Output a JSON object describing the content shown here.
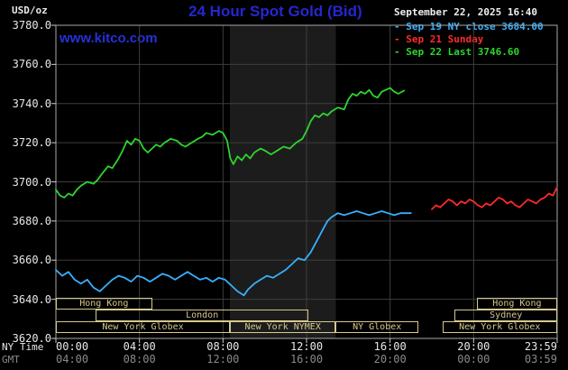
{
  "header": {
    "unit": "USD/oz",
    "title": "24 Hour Spot Gold (Bid)",
    "datetime": "September 22, 2025 16:40",
    "watermark": "www.kitco.com"
  },
  "legend": {
    "items": [
      {
        "label": "- Sep 19 NY close 3684.00",
        "color": "#38b0ff"
      },
      {
        "label": "- Sep 21 Sunday",
        "color": "#ff2a2a"
      },
      {
        "label": "- Sep 22 Last 3746.60",
        "color": "#2ed52e"
      }
    ]
  },
  "colors": {
    "title_blue": "#2626cf",
    "band": "#1c1c1c",
    "grid": "#3e3e3e",
    "border": "#a8a8a8",
    "tick": "#cccccc",
    "session_tan": "#d6c88e"
  },
  "axes": {
    "ny_row_label": "NY Time",
    "gmt_row_label": "GMT",
    "y_ticks": [
      {
        "v": 3780,
        "label": "3780.0"
      },
      {
        "v": 3760,
        "label": "3760.0"
      },
      {
        "v": 3740,
        "label": "3740.0"
      },
      {
        "v": 3720,
        "label": "3720.0"
      },
      {
        "v": 3700,
        "label": "3700.0"
      },
      {
        "v": 3680,
        "label": "3680.0"
      },
      {
        "v": 3660,
        "label": "3660.0"
      },
      {
        "v": 3640,
        "label": "3640.0"
      },
      {
        "v": 3620,
        "label": "3620.0"
      }
    ],
    "x_ticks": [
      {
        "h": 0,
        "ny": "00:00",
        "gmt": "04:00"
      },
      {
        "h": 4,
        "ny": "04:00",
        "gmt": "08:00"
      },
      {
        "h": 8,
        "ny": "08:00",
        "gmt": "12:00"
      },
      {
        "h": 12,
        "ny": "12:00",
        "gmt": "16:00"
      },
      {
        "h": 16,
        "ny": "16:00",
        "gmt": "20:00"
      },
      {
        "h": 20,
        "ny": "20:00",
        "gmt": "00:00"
      },
      {
        "h": 24,
        "ny": "23:59",
        "gmt": "03:59"
      }
    ]
  },
  "sessions": {
    "nymex_band": {
      "start": 8.33,
      "end": 13.4
    },
    "boxes": [
      {
        "label": "Hong Kong",
        "start": 0,
        "end": 4.6,
        "row": 0
      },
      {
        "label": "Hong Kong",
        "start": 20.15,
        "end": 24,
        "row": 0
      },
      {
        "label": "London",
        "start": 1.9,
        "end": 12.1,
        "row": 1
      },
      {
        "label": "Sydney",
        "start": 19.1,
        "end": 24,
        "row": 1
      },
      {
        "label": "New York Globex",
        "start": 0,
        "end": 8.33,
        "row": 2
      },
      {
        "label": "New York NYMEX",
        "start": 8.33,
        "end": 13.4,
        "row": 2
      },
      {
        "label": "NY Globex",
        "start": 13.4,
        "end": 17.35,
        "row": 2
      },
      {
        "label": "New York Globex",
        "start": 18.5,
        "end": 24,
        "row": 2
      }
    ]
  },
  "chart_data": {
    "type": "line",
    "title": "24 Hour Spot Gold (Bid)",
    "ylabel": "USD/oz",
    "xlabel": "NY Time (hours, 00:00-23:59)",
    "ylim": [
      3620,
      3780
    ],
    "xlim": [
      0,
      24
    ],
    "grid": true,
    "legend_position": "top-right",
    "series": [
      {
        "id": "sep19",
        "name": "Sep 19 NY close 3684.00",
        "color": "#38b0ff",
        "close": 3684.0,
        "points": [
          [
            0,
            3655
          ],
          [
            0.3,
            3652
          ],
          [
            0.6,
            3654
          ],
          [
            0.9,
            3650
          ],
          [
            1.2,
            3648
          ],
          [
            1.5,
            3650
          ],
          [
            1.8,
            3646
          ],
          [
            2.1,
            3644
          ],
          [
            2.4,
            3647
          ],
          [
            2.7,
            3650
          ],
          [
            3.0,
            3652
          ],
          [
            3.3,
            3651
          ],
          [
            3.6,
            3649
          ],
          [
            3.9,
            3652
          ],
          [
            4.2,
            3651
          ],
          [
            4.5,
            3649
          ],
          [
            4.8,
            3651
          ],
          [
            5.1,
            3653
          ],
          [
            5.4,
            3652
          ],
          [
            5.7,
            3650
          ],
          [
            6.0,
            3652
          ],
          [
            6.3,
            3654
          ],
          [
            6.6,
            3652
          ],
          [
            6.9,
            3650
          ],
          [
            7.2,
            3651
          ],
          [
            7.5,
            3649
          ],
          [
            7.8,
            3651
          ],
          [
            8.1,
            3650
          ],
          [
            8.4,
            3647
          ],
          [
            8.7,
            3644
          ],
          [
            9.0,
            3642
          ],
          [
            9.2,
            3645
          ],
          [
            9.5,
            3648
          ],
          [
            9.8,
            3650
          ],
          [
            10.1,
            3652
          ],
          [
            10.4,
            3651
          ],
          [
            10.7,
            3653
          ],
          [
            11.0,
            3655
          ],
          [
            11.3,
            3658
          ],
          [
            11.6,
            3661
          ],
          [
            11.9,
            3660
          ],
          [
            12.2,
            3664
          ],
          [
            12.5,
            3670
          ],
          [
            12.8,
            3676
          ],
          [
            13.0,
            3680
          ],
          [
            13.2,
            3682
          ],
          [
            13.5,
            3684
          ],
          [
            13.8,
            3683
          ],
          [
            14.1,
            3684
          ],
          [
            14.4,
            3685
          ],
          [
            14.7,
            3684
          ],
          [
            15.0,
            3683
          ],
          [
            15.3,
            3684
          ],
          [
            15.6,
            3685
          ],
          [
            15.9,
            3684
          ],
          [
            16.2,
            3683
          ],
          [
            16.5,
            3684
          ],
          [
            17.0,
            3684
          ]
        ]
      },
      {
        "id": "sep21",
        "name": "Sep 21 Sunday",
        "color": "#ff2a2a",
        "points": [
          [
            18.0,
            3686
          ],
          [
            18.2,
            3688
          ],
          [
            18.4,
            3687
          ],
          [
            18.6,
            3689
          ],
          [
            18.8,
            3691
          ],
          [
            19.0,
            3690
          ],
          [
            19.2,
            3688
          ],
          [
            19.4,
            3690
          ],
          [
            19.6,
            3689
          ],
          [
            19.8,
            3691
          ],
          [
            20.0,
            3690
          ],
          [
            20.2,
            3688
          ],
          [
            20.4,
            3687
          ],
          [
            20.6,
            3689
          ],
          [
            20.8,
            3688
          ],
          [
            21.0,
            3690
          ],
          [
            21.2,
            3692
          ],
          [
            21.4,
            3691
          ],
          [
            21.6,
            3689
          ],
          [
            21.8,
            3690
          ],
          [
            22.0,
            3688
          ],
          [
            22.2,
            3687
          ],
          [
            22.4,
            3689
          ],
          [
            22.6,
            3691
          ],
          [
            22.8,
            3690
          ],
          [
            23.0,
            3689
          ],
          [
            23.2,
            3691
          ],
          [
            23.4,
            3692
          ],
          [
            23.6,
            3694
          ],
          [
            23.8,
            3693
          ],
          [
            23.98,
            3697
          ]
        ]
      },
      {
        "id": "sep22",
        "name": "Sep 22 Last 3746.60",
        "color": "#2ed52e",
        "last": 3746.6,
        "points": [
          [
            0,
            3696
          ],
          [
            0.2,
            3693
          ],
          [
            0.4,
            3692
          ],
          [
            0.6,
            3694
          ],
          [
            0.8,
            3693
          ],
          [
            1.0,
            3696
          ],
          [
            1.2,
            3698
          ],
          [
            1.5,
            3700
          ],
          [
            1.8,
            3699
          ],
          [
            2.0,
            3701
          ],
          [
            2.2,
            3704
          ],
          [
            2.5,
            3708
          ],
          [
            2.7,
            3707
          ],
          [
            3.0,
            3712
          ],
          [
            3.2,
            3716
          ],
          [
            3.4,
            3721
          ],
          [
            3.6,
            3719
          ],
          [
            3.8,
            3722
          ],
          [
            4.0,
            3721
          ],
          [
            4.2,
            3717
          ],
          [
            4.4,
            3715
          ],
          [
            4.6,
            3717
          ],
          [
            4.8,
            3719
          ],
          [
            5.0,
            3718
          ],
          [
            5.2,
            3720
          ],
          [
            5.5,
            3722
          ],
          [
            5.8,
            3721
          ],
          [
            6.0,
            3719
          ],
          [
            6.2,
            3718
          ],
          [
            6.5,
            3720
          ],
          [
            6.8,
            3722
          ],
          [
            7.0,
            3723
          ],
          [
            7.2,
            3725
          ],
          [
            7.5,
            3724
          ],
          [
            7.8,
            3726
          ],
          [
            8.0,
            3725
          ],
          [
            8.2,
            3721
          ],
          [
            8.35,
            3712
          ],
          [
            8.5,
            3709
          ],
          [
            8.7,
            3713
          ],
          [
            8.9,
            3711
          ],
          [
            9.1,
            3714
          ],
          [
            9.3,
            3712
          ],
          [
            9.5,
            3715
          ],
          [
            9.8,
            3717
          ],
          [
            10.0,
            3716
          ],
          [
            10.3,
            3714
          ],
          [
            10.6,
            3716
          ],
          [
            10.9,
            3718
          ],
          [
            11.2,
            3717
          ],
          [
            11.5,
            3720
          ],
          [
            11.8,
            3722
          ],
          [
            12.0,
            3726
          ],
          [
            12.2,
            3731
          ],
          [
            12.4,
            3734
          ],
          [
            12.6,
            3733
          ],
          [
            12.8,
            3735
          ],
          [
            13.0,
            3734
          ],
          [
            13.2,
            3736
          ],
          [
            13.5,
            3738
          ],
          [
            13.8,
            3737
          ],
          [
            14.0,
            3742
          ],
          [
            14.2,
            3745
          ],
          [
            14.4,
            3744
          ],
          [
            14.6,
            3746
          ],
          [
            14.8,
            3745
          ],
          [
            15.0,
            3747
          ],
          [
            15.2,
            3744
          ],
          [
            15.4,
            3743
          ],
          [
            15.6,
            3746
          ],
          [
            15.8,
            3747
          ],
          [
            16.0,
            3748
          ],
          [
            16.2,
            3746
          ],
          [
            16.4,
            3745
          ],
          [
            16.67,
            3746.6
          ]
        ]
      }
    ]
  }
}
